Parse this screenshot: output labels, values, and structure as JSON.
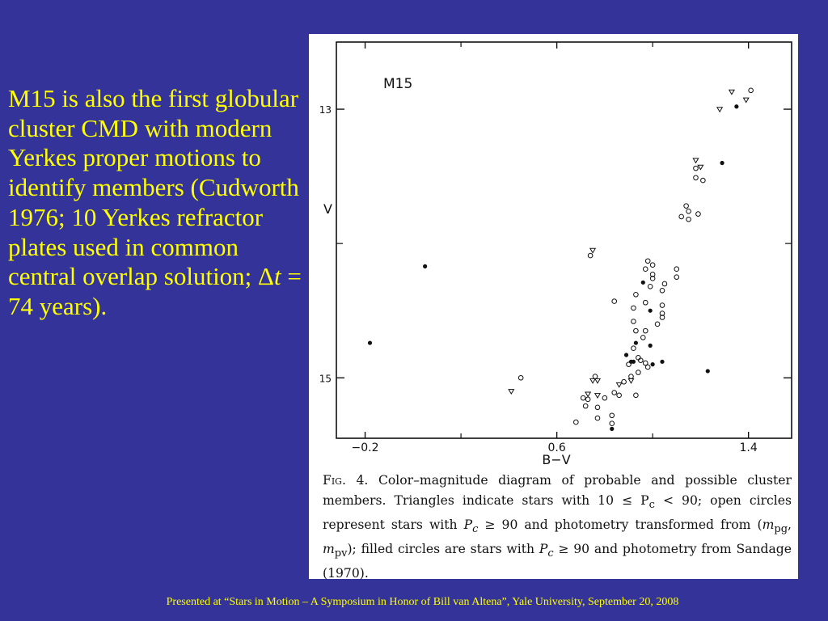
{
  "slide": {
    "bullet_parts": [
      "M15 is also the first globular cluster CMD with modern Yerkes proper motions to identify members (Cudworth 1976; 10 Yerkes refractor plates used in common central overlap solution; Δ",
      "t",
      " = 74 years)."
    ],
    "footer": "Presented at “Stars in Motion – A Symposium in Honor of Bill van Altena”, Yale University, September 20, 2008"
  },
  "figure": {
    "caption_parts": [
      "Fig. 4.",
      " Color–magnitude diagram of probable and possible cluster members. Triangles indicate stars with 10 ≤ P",
      "c",
      " < 90; open circles represent stars with ",
      "P",
      "c",
      " ≥ 90 and photometry transformed from (",
      "m",
      "pg",
      ", ",
      "m",
      "pv",
      "); filled circles are stars with ",
      "P",
      "c",
      " ≥ 90 and photometry from Sandage (1970)."
    ]
  },
  "chart_data": {
    "type": "scatter",
    "title": "M15",
    "xlabel": "B−V",
    "ylabel": "V",
    "xlim": [
      -0.32,
      1.58
    ],
    "ylim": [
      15.45,
      12.5
    ],
    "y_inverted": true,
    "x_ticks": [
      -0.2,
      0.6,
      1.4
    ],
    "x_tick_labels": [
      "−0.2",
      "0.6",
      "1.4"
    ],
    "y_ticks": [
      13,
      15
    ],
    "y_tick_labels": [
      "13",
      "15"
    ],
    "colors": {
      "marker": "#111111",
      "frame": "#111111"
    },
    "series": [
      {
        "marker": "triangle-open",
        "points": [
          [
            1.33,
            12.87
          ],
          [
            1.39,
            12.93
          ],
          [
            1.28,
            13.0
          ],
          [
            1.18,
            13.38
          ],
          [
            1.2,
            13.43
          ],
          [
            0.75,
            14.05
          ],
          [
            0.75,
            15.02
          ],
          [
            0.77,
            15.02
          ],
          [
            0.91,
            15.02
          ],
          [
            0.41,
            15.1
          ],
          [
            0.73,
            15.12
          ],
          [
            0.77,
            15.13
          ],
          [
            0.86,
            15.05
          ]
        ]
      },
      {
        "marker": "circle-open",
        "points": [
          [
            1.41,
            12.86
          ],
          [
            1.18,
            13.44
          ],
          [
            1.18,
            13.51
          ],
          [
            1.21,
            13.53
          ],
          [
            1.14,
            13.72
          ],
          [
            1.15,
            13.76
          ],
          [
            1.12,
            13.8
          ],
          [
            1.15,
            13.82
          ],
          [
            1.19,
            13.78
          ],
          [
            0.74,
            14.09
          ],
          [
            0.98,
            14.13
          ],
          [
            1.0,
            14.16
          ],
          [
            0.97,
            14.19
          ],
          [
            1.0,
            14.23
          ],
          [
            1.0,
            14.26
          ],
          [
            1.1,
            14.19
          ],
          [
            1.1,
            14.25
          ],
          [
            1.05,
            14.3
          ],
          [
            1.04,
            14.35
          ],
          [
            0.99,
            14.32
          ],
          [
            0.93,
            14.38
          ],
          [
            0.84,
            14.43
          ],
          [
            0.97,
            14.44
          ],
          [
            1.04,
            14.46
          ],
          [
            1.04,
            14.52
          ],
          [
            0.92,
            14.48
          ],
          [
            1.04,
            14.55
          ],
          [
            1.02,
            14.6
          ],
          [
            0.92,
            14.58
          ],
          [
            0.93,
            14.65
          ],
          [
            0.97,
            14.65
          ],
          [
            0.96,
            14.7
          ],
          [
            0.92,
            14.78
          ],
          [
            0.94,
            14.85
          ],
          [
            0.95,
            14.87
          ],
          [
            0.97,
            14.89
          ],
          [
            0.98,
            14.92
          ],
          [
            0.9,
            14.9
          ],
          [
            0.94,
            14.96
          ],
          [
            0.91,
            14.99
          ],
          [
            0.88,
            15.03
          ],
          [
            0.45,
            15.0
          ],
          [
            0.76,
            14.99
          ],
          [
            0.84,
            15.11
          ],
          [
            0.86,
            15.13
          ],
          [
            0.8,
            15.15
          ],
          [
            0.93,
            15.13
          ],
          [
            0.71,
            15.15
          ],
          [
            0.73,
            15.16
          ],
          [
            0.72,
            15.21
          ],
          [
            0.77,
            15.22
          ],
          [
            0.83,
            15.28
          ],
          [
            0.83,
            15.34
          ],
          [
            0.77,
            15.3
          ],
          [
            0.68,
            15.33
          ]
        ]
      },
      {
        "marker": "circle-filled",
        "points": [
          [
            1.35,
            12.98
          ],
          [
            1.29,
            13.4
          ],
          [
            0.96,
            14.29
          ],
          [
            0.99,
            14.5
          ],
          [
            0.93,
            14.74
          ],
          [
            0.99,
            14.76
          ],
          [
            0.89,
            14.83
          ],
          [
            0.91,
            14.88
          ],
          [
            0.92,
            14.88
          ],
          [
            1.04,
            14.88
          ],
          [
            1.0,
            14.9
          ],
          [
            0.83,
            15.38
          ],
          [
            0.05,
            14.17
          ],
          [
            -0.18,
            14.74
          ],
          [
            1.23,
            14.95
          ]
        ]
      }
    ]
  }
}
